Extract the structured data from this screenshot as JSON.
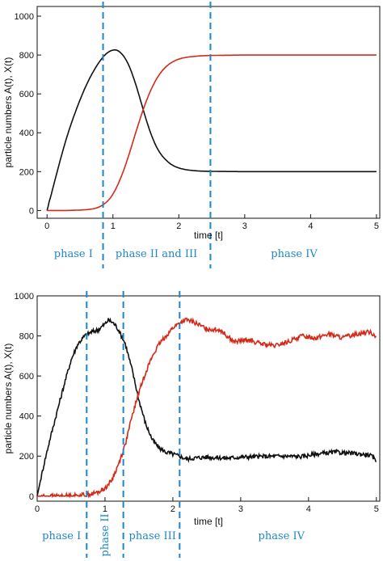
{
  "chart_data": [
    {
      "type": "line",
      "xlabel": "time [t]",
      "ylabel": "particle numbers A(t), X(t)",
      "xlim": [
        -0.15,
        5.05
      ],
      "ylim": [
        -40,
        1050
      ],
      "xticks": [
        0,
        1,
        2,
        3,
        4,
        5
      ],
      "yticks": [
        0,
        200,
        400,
        600,
        800,
        1000
      ],
      "grid": false,
      "series": [
        {
          "color": "#111111",
          "x": [
            0,
            0.1,
            0.2,
            0.3,
            0.4,
            0.5,
            0.6,
            0.7,
            0.8,
            0.9,
            1.0,
            1.05,
            1.1,
            1.2,
            1.3,
            1.4,
            1.5,
            1.6,
            1.7,
            1.8,
            1.9,
            2.0,
            2.1,
            2.2,
            2.3,
            2.4,
            2.6,
            3.0,
            3.5,
            4.0,
            4.5,
            5.0
          ],
          "y": [
            0,
            130,
            260,
            380,
            480,
            570,
            650,
            715,
            770,
            810,
            828,
            828,
            820,
            780,
            700,
            590,
            470,
            370,
            300,
            260,
            232,
            218,
            210,
            206,
            203,
            202,
            201,
            200,
            200,
            200,
            200,
            200
          ]
        },
        {
          "color": "#d42a1a",
          "x": [
            0,
            0.3,
            0.5,
            0.6,
            0.7,
            0.8,
            0.9,
            1.0,
            1.1,
            1.2,
            1.3,
            1.4,
            1.5,
            1.6,
            1.7,
            1.8,
            1.9,
            2.0,
            2.1,
            2.2,
            2.3,
            2.4,
            2.5,
            2.7,
            3.0,
            3.5,
            4.0,
            4.5,
            5.0
          ],
          "y": [
            0,
            0,
            2,
            4,
            8,
            18,
            40,
            80,
            150,
            240,
            350,
            460,
            560,
            640,
            700,
            740,
            765,
            780,
            788,
            792,
            795,
            797,
            798,
            799,
            800,
            800,
            800,
            800,
            800
          ]
        }
      ],
      "phase_lines": [
        0.85,
        2.48
      ],
      "phase_labels": [
        {
          "text": "phase I",
          "x": 0.4
        },
        {
          "text": "phase II and III",
          "x": 1.66
        },
        {
          "text": "phase IV",
          "x": 3.75
        }
      ]
    },
    {
      "type": "line",
      "xlabel": "time [t]",
      "ylabel": "particle numbers A(t), X(t)",
      "xlim": [
        0,
        5.05
      ],
      "ylim": [
        -25,
        1000
      ],
      "xticks": [
        0,
        1,
        2,
        3,
        4,
        5
      ],
      "yticks": [
        0,
        200,
        400,
        600,
        800,
        1000
      ],
      "grid": false,
      "series": [
        {
          "color": "#111111",
          "noisy": true,
          "x": [
            0,
            0.1,
            0.2,
            0.3,
            0.4,
            0.5,
            0.6,
            0.7,
            0.8,
            0.9,
            1.0,
            1.05,
            1.1,
            1.15,
            1.2,
            1.3,
            1.4,
            1.5,
            1.6,
            1.7,
            1.8,
            1.9,
            2.0,
            2.1,
            2.2,
            2.3,
            2.5,
            2.8,
            3.0,
            3.3,
            3.6,
            3.9,
            4.1,
            4.4,
            4.7,
            4.9,
            5.0
          ],
          "y": [
            0,
            160,
            300,
            430,
            560,
            680,
            760,
            800,
            820,
            830,
            860,
            880,
            870,
            855,
            830,
            760,
            630,
            480,
            360,
            280,
            240,
            220,
            210,
            200,
            185,
            190,
            195,
            190,
            195,
            198,
            200,
            198,
            210,
            220,
            212,
            205,
            180
          ]
        },
        {
          "color": "#d42a1a",
          "noisy": true,
          "x": [
            0,
            0.3,
            0.6,
            0.8,
            0.9,
            1.0,
            1.1,
            1.2,
            1.3,
            1.4,
            1.5,
            1.6,
            1.7,
            1.8,
            1.9,
            2.0,
            2.1,
            2.2,
            2.3,
            2.5,
            2.7,
            2.9,
            3.1,
            3.3,
            3.5,
            3.7,
            3.9,
            4.1,
            4.3,
            4.5,
            4.7,
            4.9,
            5.0
          ],
          "y": [
            0,
            0,
            3,
            10,
            20,
            40,
            80,
            160,
            260,
            400,
            520,
            620,
            700,
            760,
            800,
            840,
            865,
            880,
            870,
            835,
            830,
            770,
            780,
            760,
            750,
            770,
            800,
            790,
            810,
            790,
            810,
            820,
            800
          ]
        }
      ],
      "phase_lines": [
        0.73,
        1.27,
        2.1
      ],
      "phase_labels": [
        {
          "text": "phase I",
          "x": 0.36,
          "rotate": false
        },
        {
          "text": "phase II",
          "x": 1.0,
          "rotate": true
        },
        {
          "text": "phase III",
          "x": 1.7,
          "rotate": false
        },
        {
          "text": "phase IV",
          "x": 3.6,
          "rotate": false
        }
      ]
    }
  ]
}
